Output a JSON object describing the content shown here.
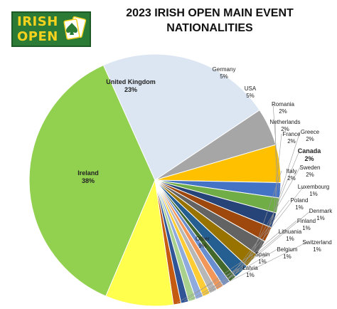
{
  "logo": {
    "line1": "IRISH",
    "line2": "OPEN",
    "icon": "playing-cards-spade-icon"
  },
  "chart_data": {
    "type": "pie",
    "title": "2023 IRISH OPEN MAIN EVENT NATIONALITIES",
    "title_lines": [
      "2023 IRISH OPEN MAIN EVENT",
      "NATIONALITIES"
    ],
    "slices": [
      {
        "label": "Ireland",
        "pct_text": "38%",
        "value": 38,
        "color": "#92d050",
        "bold": true
      },
      {
        "label": "United Kingdom",
        "pct_text": "23%",
        "value": 23,
        "color": "#dce6f2",
        "bold": true
      },
      {
        "label": "Germany",
        "pct_text": "5%",
        "value": 5,
        "color": "#a6a6a6"
      },
      {
        "label": "USA",
        "pct_text": "5%",
        "value": 5,
        "color": "#ffc000"
      },
      {
        "label": "Romania",
        "pct_text": "2%",
        "value": 2,
        "color": "#4472c4"
      },
      {
        "label": "Netherlands",
        "pct_text": "2%",
        "value": 2,
        "color": "#70ad47"
      },
      {
        "label": "France",
        "pct_text": "2%",
        "value": 2,
        "color": "#264478"
      },
      {
        "label": "Greece",
        "pct_text": "2%",
        "value": 2,
        "color": "#9e480e"
      },
      {
        "label": "Canada",
        "pct_text": "2%",
        "value": 2,
        "color": "#636363",
        "bold": true
      },
      {
        "label": "Italy",
        "pct_text": "2%",
        "value": 2,
        "color": "#997300"
      },
      {
        "label": "Sweden",
        "pct_text": "2%",
        "value": 2,
        "color": "#255e91"
      },
      {
        "label": "Luxembourg",
        "pct_text": "1%",
        "value": 1,
        "color": "#43682b"
      },
      {
        "label": "Poland",
        "pct_text": "1%",
        "value": 1,
        "color": "#698ed0"
      },
      {
        "label": "Denmark",
        "pct_text": "1%",
        "value": 1,
        "color": "#f1975a"
      },
      {
        "label": "Finland",
        "pct_text": "1%",
        "value": 1,
        "color": "#b7b7b7"
      },
      {
        "label": "Lithuania",
        "pct_text": "1%",
        "value": 1,
        "color": "#ffcd33"
      },
      {
        "label": "Switzerland",
        "pct_text": "1%",
        "value": 1,
        "color": "#8faadc"
      },
      {
        "label": "Belgium",
        "pct_text": "1%",
        "value": 1,
        "color": "#a9d18e"
      },
      {
        "label": "Spain",
        "pct_text": "1%",
        "value": 1,
        "color": "#2f5597"
      },
      {
        "label": "Latvia",
        "pct_text": "1%",
        "value": 1,
        "color": "#c55a11"
      },
      {
        "label": "Other",
        "pct_text": "9%",
        "value": 9,
        "color": "#ffff4d"
      }
    ]
  }
}
